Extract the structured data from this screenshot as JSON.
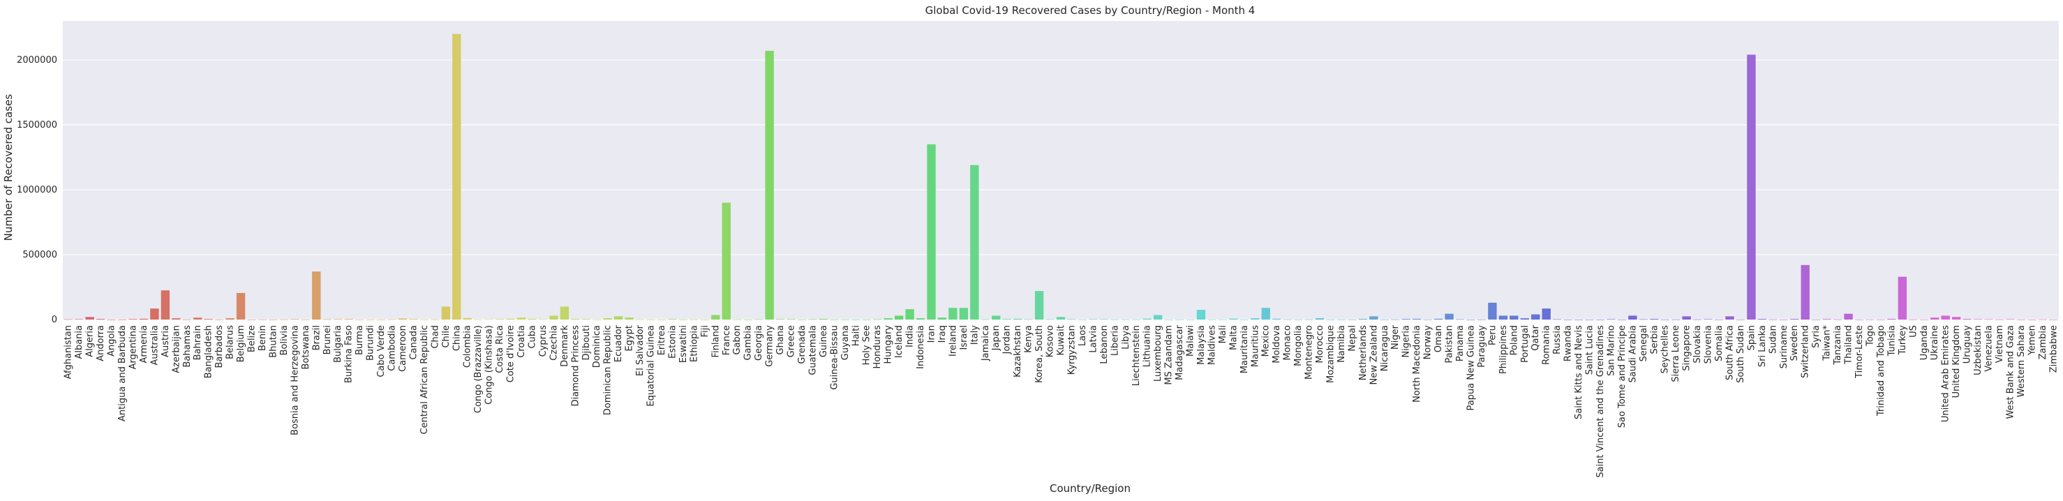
{
  "chart_data": {
    "type": "bar",
    "title": "Global Covid-19 Recovered Cases by Country/Region - Month 4",
    "xlabel": "Country/Region",
    "ylabel": "Number of Recovered cases",
    "ylim": [
      0,
      2300000
    ],
    "yticks": [
      0,
      500000,
      1000000,
      1500000,
      2000000
    ],
    "grid": true,
    "legend": "none",
    "categories": [
      "Afghanistan",
      "Albania",
      "Algeria",
      "Andorra",
      "Angola",
      "Antigua and Barbuda",
      "Argentina",
      "Armenia",
      "Australia",
      "Austria",
      "Azerbaijan",
      "Bahamas",
      "Bahrain",
      "Bangladesh",
      "Barbados",
      "Belarus",
      "Belgium",
      "Belize",
      "Benin",
      "Bhutan",
      "Bolivia",
      "Bosnia and Herzegovina",
      "Botswana",
      "Brazil",
      "Brunei",
      "Bulgaria",
      "Burkina Faso",
      "Burma",
      "Burundi",
      "Cabo Verde",
      "Cambodia",
      "Cameroon",
      "Canada",
      "Central African Republic",
      "Chad",
      "Chile",
      "China",
      "Colombia",
      "Congo (Brazzaville)",
      "Congo (Kinshasa)",
      "Costa Rica",
      "Cote d'Ivoire",
      "Croatia",
      "Cuba",
      "Cyprus",
      "Czechia",
      "Denmark",
      "Diamond Princess",
      "Djibouti",
      "Dominica",
      "Dominican Republic",
      "Ecuador",
      "Egypt",
      "El Salvador",
      "Equatorial Guinea",
      "Eritrea",
      "Estonia",
      "Eswatini",
      "Ethiopia",
      "Fiji",
      "Finland",
      "France",
      "Gabon",
      "Gambia",
      "Georgia",
      "Germany",
      "Ghana",
      "Greece",
      "Grenada",
      "Guatemala",
      "Guinea",
      "Guinea-Bissau",
      "Guyana",
      "Haiti",
      "Holy See",
      "Honduras",
      "Hungary",
      "Iceland",
      "India",
      "Indonesia",
      "Iran",
      "Iraq",
      "Ireland",
      "Israel",
      "Italy",
      "Jamaica",
      "Japan",
      "Jordan",
      "Kazakhstan",
      "Kenya",
      "Korea, South",
      "Kosovo",
      "Kuwait",
      "Kyrgyzstan",
      "Laos",
      "Latvia",
      "Lebanon",
      "Liberia",
      "Libya",
      "Liechtenstein",
      "Lithuania",
      "Luxembourg",
      "MS Zaandam",
      "Madagascar",
      "Malawi",
      "Malaysia",
      "Maldives",
      "Mali",
      "Malta",
      "Mauritania",
      "Mauritius",
      "Mexico",
      "Moldova",
      "Monaco",
      "Mongolia",
      "Montenegro",
      "Morocco",
      "Mozambique",
      "Namibia",
      "Nepal",
      "Netherlands",
      "New Zealand",
      "Nicaragua",
      "Niger",
      "Nigeria",
      "North Macedonia",
      "Norway",
      "Oman",
      "Pakistan",
      "Panama",
      "Papua New Guinea",
      "Paraguay",
      "Peru",
      "Philippines",
      "Poland",
      "Portugal",
      "Qatar",
      "Romania",
      "Russia",
      "Rwanda",
      "Saint Kitts and Nevis",
      "Saint Lucia",
      "Saint Vincent and the Grenadines",
      "San Marino",
      "Sao Tome and Principe",
      "Saudi Arabia",
      "Senegal",
      "Serbia",
      "Seychelles",
      "Sierra Leone",
      "Singapore",
      "Slovakia",
      "Slovenia",
      "Somalia",
      "South Africa",
      "South Sudan",
      "Spain",
      "Sri Lanka",
      "Sudan",
      "Suriname",
      "Sweden",
      "Switzerland",
      "Syria",
      "Taiwan*",
      "Tanzania",
      "Thailand",
      "Timor-Leste",
      "Togo",
      "Trinidad and Tobago",
      "Tunisia",
      "Turkey",
      "US",
      "Uganda",
      "Ukraine",
      "United Arab Emirates",
      "United Kingdom",
      "Uruguay",
      "Uzbekistan",
      "Venezuela",
      "Vietnam",
      "West Bank and Gaza",
      "Western Sahara",
      "Yemen",
      "Zambia",
      "Zimbabwe"
    ],
    "values": [
      2000,
      3000,
      20000,
      5000,
      100,
      500,
      4000,
      6000,
      85000,
      225000,
      10000,
      500,
      15000,
      5000,
      300,
      10000,
      205000,
      100,
      1000,
      100,
      1000,
      3000,
      300,
      370000,
      2000,
      3000,
      4000,
      100,
      100,
      100,
      1500,
      8000,
      4000,
      500,
      1000,
      100000,
      2200000,
      12000,
      1000,
      2000,
      4000,
      6000,
      15000,
      5000,
      2000,
      30000,
      100000,
      5000,
      4000,
      200,
      10000,
      25000,
      15000,
      1000,
      100,
      100,
      4000,
      300,
      1000,
      100,
      35000,
      900000,
      1000,
      100,
      2000,
      2070000,
      3000,
      3000,
      100,
      2000,
      5000,
      200,
      200,
      300,
      100,
      2000,
      10000,
      30000,
      80000,
      10000,
      1350000,
      15000,
      90000,
      90000,
      1190000,
      1500,
      30000,
      4000,
      6000,
      2000,
      220000,
      2000,
      20000,
      3000,
      100,
      3000,
      3000,
      500,
      500,
      1000,
      7000,
      35000,
      100,
      500,
      200,
      75000,
      500,
      500,
      7000,
      100,
      10000,
      90000,
      6000,
      1000,
      300,
      1000,
      10000,
      300,
      100,
      500,
      5000,
      25000,
      300,
      1000,
      5000,
      6000,
      600,
      6000,
      45000,
      2000,
      100,
      500,
      130000,
      30000,
      30000,
      10000,
      40000,
      85000,
      2000,
      200,
      100,
      100,
      100,
      3000,
      100,
      30000,
      2000,
      5000,
      100,
      500,
      25000,
      1000,
      3000,
      200,
      25000,
      200,
      2040000,
      5000,
      500,
      100,
      5000,
      420000,
      200,
      4000,
      1000,
      45000,
      100,
      500,
      300,
      5000,
      330000,
      1000,
      200,
      15000,
      30000,
      20000,
      5000,
      3000,
      2000,
      1000,
      3000,
      100,
      100,
      1000,
      100
    ]
  },
  "colors": {
    "plot_background": "#eaeaf2",
    "grid": "#ffffff",
    "text": "#262626"
  }
}
